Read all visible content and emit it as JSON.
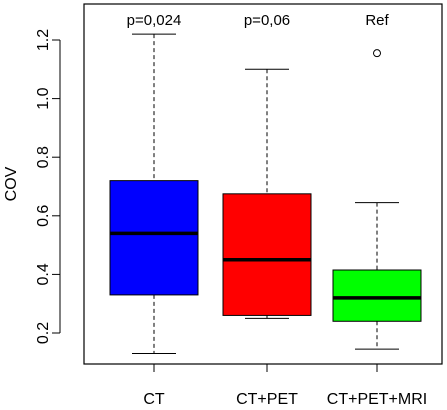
{
  "chart_data": {
    "type": "box",
    "ylabel": "COV",
    "ylim": [
      0.1,
      1.3
    ],
    "yticks": [
      0.2,
      0.4,
      0.6,
      0.8,
      1.0,
      1.2
    ],
    "ytick_labels": [
      "0.2",
      "0.4",
      "0.6",
      "0.8",
      "1.0",
      "1.2"
    ],
    "grid": false,
    "categories": [
      "CT",
      "CT+PET",
      "CT+PET+MRI"
    ],
    "boxes": [
      {
        "category": "CT",
        "min": 0.13,
        "q1": 0.33,
        "median": 0.54,
        "q3": 0.72,
        "max": 1.22,
        "outliers": [],
        "color": "#0000ff",
        "annotation": "p=0,024"
      },
      {
        "category": "CT+PET",
        "min": 0.25,
        "q1": 0.26,
        "median": 0.45,
        "q3": 0.675,
        "max": 1.1,
        "outliers": [],
        "color": "#ff0000",
        "annotation": "p=0,06"
      },
      {
        "category": "CT+PET+MRI",
        "min": 0.145,
        "q1": 0.24,
        "median": 0.32,
        "q3": 0.415,
        "max": 0.645,
        "outliers": [
          1.155
        ],
        "color": "#00ff00",
        "annotation": "Ref"
      }
    ]
  }
}
